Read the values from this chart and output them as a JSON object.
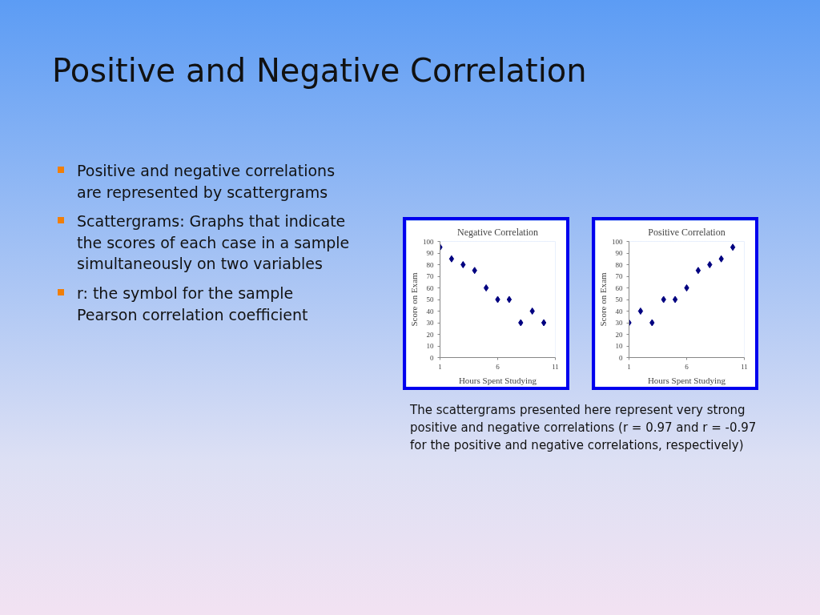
{
  "chart_data": [
    {
      "type": "other",
      "title": "Positive and Negative Correlation",
      "annotations": [
        "Positive and negative correlations are represented by scattergrams",
        "Scattergrams: Graphs that indicate the scores of each case in a sample simultaneously on two variables",
        "r: the symbol for the sample Pearson correlation coefficient",
        "The scattergrams presented here represent very strong positive and negative correlations (r = 0.97 and r = -0.97 for the positive and negative correlations, respectively)"
      ]
    },
    {
      "type": "scatter",
      "title": "Negative Correlation",
      "xlabel": "Hours Spent Studying",
      "ylabel": "Score on Exam",
      "marker": "diamond",
      "color": "#000080",
      "x": [
        1,
        2,
        3,
        4,
        5,
        6,
        7,
        8,
        9,
        10
      ],
      "values": [
        95,
        85,
        80,
        75,
        60,
        50,
        50,
        30,
        40,
        30
      ],
      "xlim": [
        1,
        11
      ],
      "xticks": [
        1,
        6,
        11
      ],
      "ylim": [
        0,
        100
      ],
      "yticks": [
        0,
        10,
        20,
        30,
        40,
        50,
        60,
        70,
        80,
        90,
        100
      ]
    },
    {
      "type": "scatter",
      "title": "Positive Correlation",
      "xlabel": "Hours Spent Studying",
      "ylabel": "Score on Exam",
      "marker": "diamond",
      "color": "#000080",
      "x": [
        1,
        2,
        3,
        4,
        5,
        6,
        7,
        8,
        9,
        10
      ],
      "values": [
        30,
        40,
        30,
        50,
        50,
        60,
        75,
        80,
        85,
        95
      ],
      "xlim": [
        1,
        11
      ],
      "xticks": [
        1,
        6,
        11
      ],
      "ylim": [
        0,
        100
      ],
      "yticks": [
        0,
        10,
        20,
        30,
        40,
        50,
        60,
        70,
        80,
        90,
        100
      ]
    }
  ]
}
